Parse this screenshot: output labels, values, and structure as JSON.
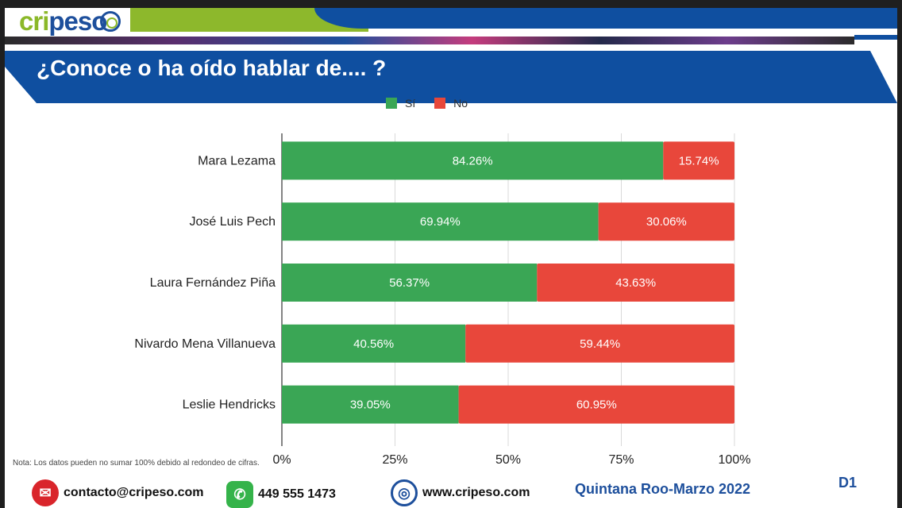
{
  "header": {
    "logo_text_a": "cri",
    "logo_text_b": "peso",
    "title": "¿Conoce o ha oído hablar de.... ?"
  },
  "legend": [
    {
      "label": "Sí",
      "color": "#3aa655"
    },
    {
      "label": "No",
      "color": "#e8473b"
    }
  ],
  "chart_data": {
    "type": "bar",
    "orientation": "horizontal",
    "stacked": true,
    "normalized_percent": true,
    "categories": [
      "Mara Lezama",
      "José Luis Pech",
      "Laura Fernández Piña",
      "Nivardo Mena Villanueva",
      "Leslie Hendricks"
    ],
    "series": [
      {
        "name": "Sí",
        "color": "#3aa655",
        "values": [
          84.26,
          69.94,
          56.37,
          40.56,
          39.05
        ],
        "labels": [
          "84.26%",
          "69.94%",
          "56.37%",
          "40.56%",
          "39.05%"
        ]
      },
      {
        "name": "No",
        "color": "#e8473b",
        "values": [
          15.74,
          30.06,
          43.63,
          59.44,
          60.95
        ],
        "labels": [
          "15.74%",
          "30.06%",
          "43.63%",
          "59.44%",
          "60.95%"
        ]
      }
    ],
    "xlim": [
      0,
      100
    ],
    "xticks": [
      "0%",
      "25%",
      "50%",
      "75%",
      "100%"
    ],
    "grid": true,
    "legend_position": "top"
  },
  "footer": {
    "note": "Nota: Los datos pueden no sumar 100% debido al redondeo de cifras.",
    "email": "contacto@cripeso.com",
    "phone": "449 555 1473",
    "website": "www.cripeso.com",
    "region": "Quintana Roo-Marzo 2022",
    "code": "D1"
  }
}
